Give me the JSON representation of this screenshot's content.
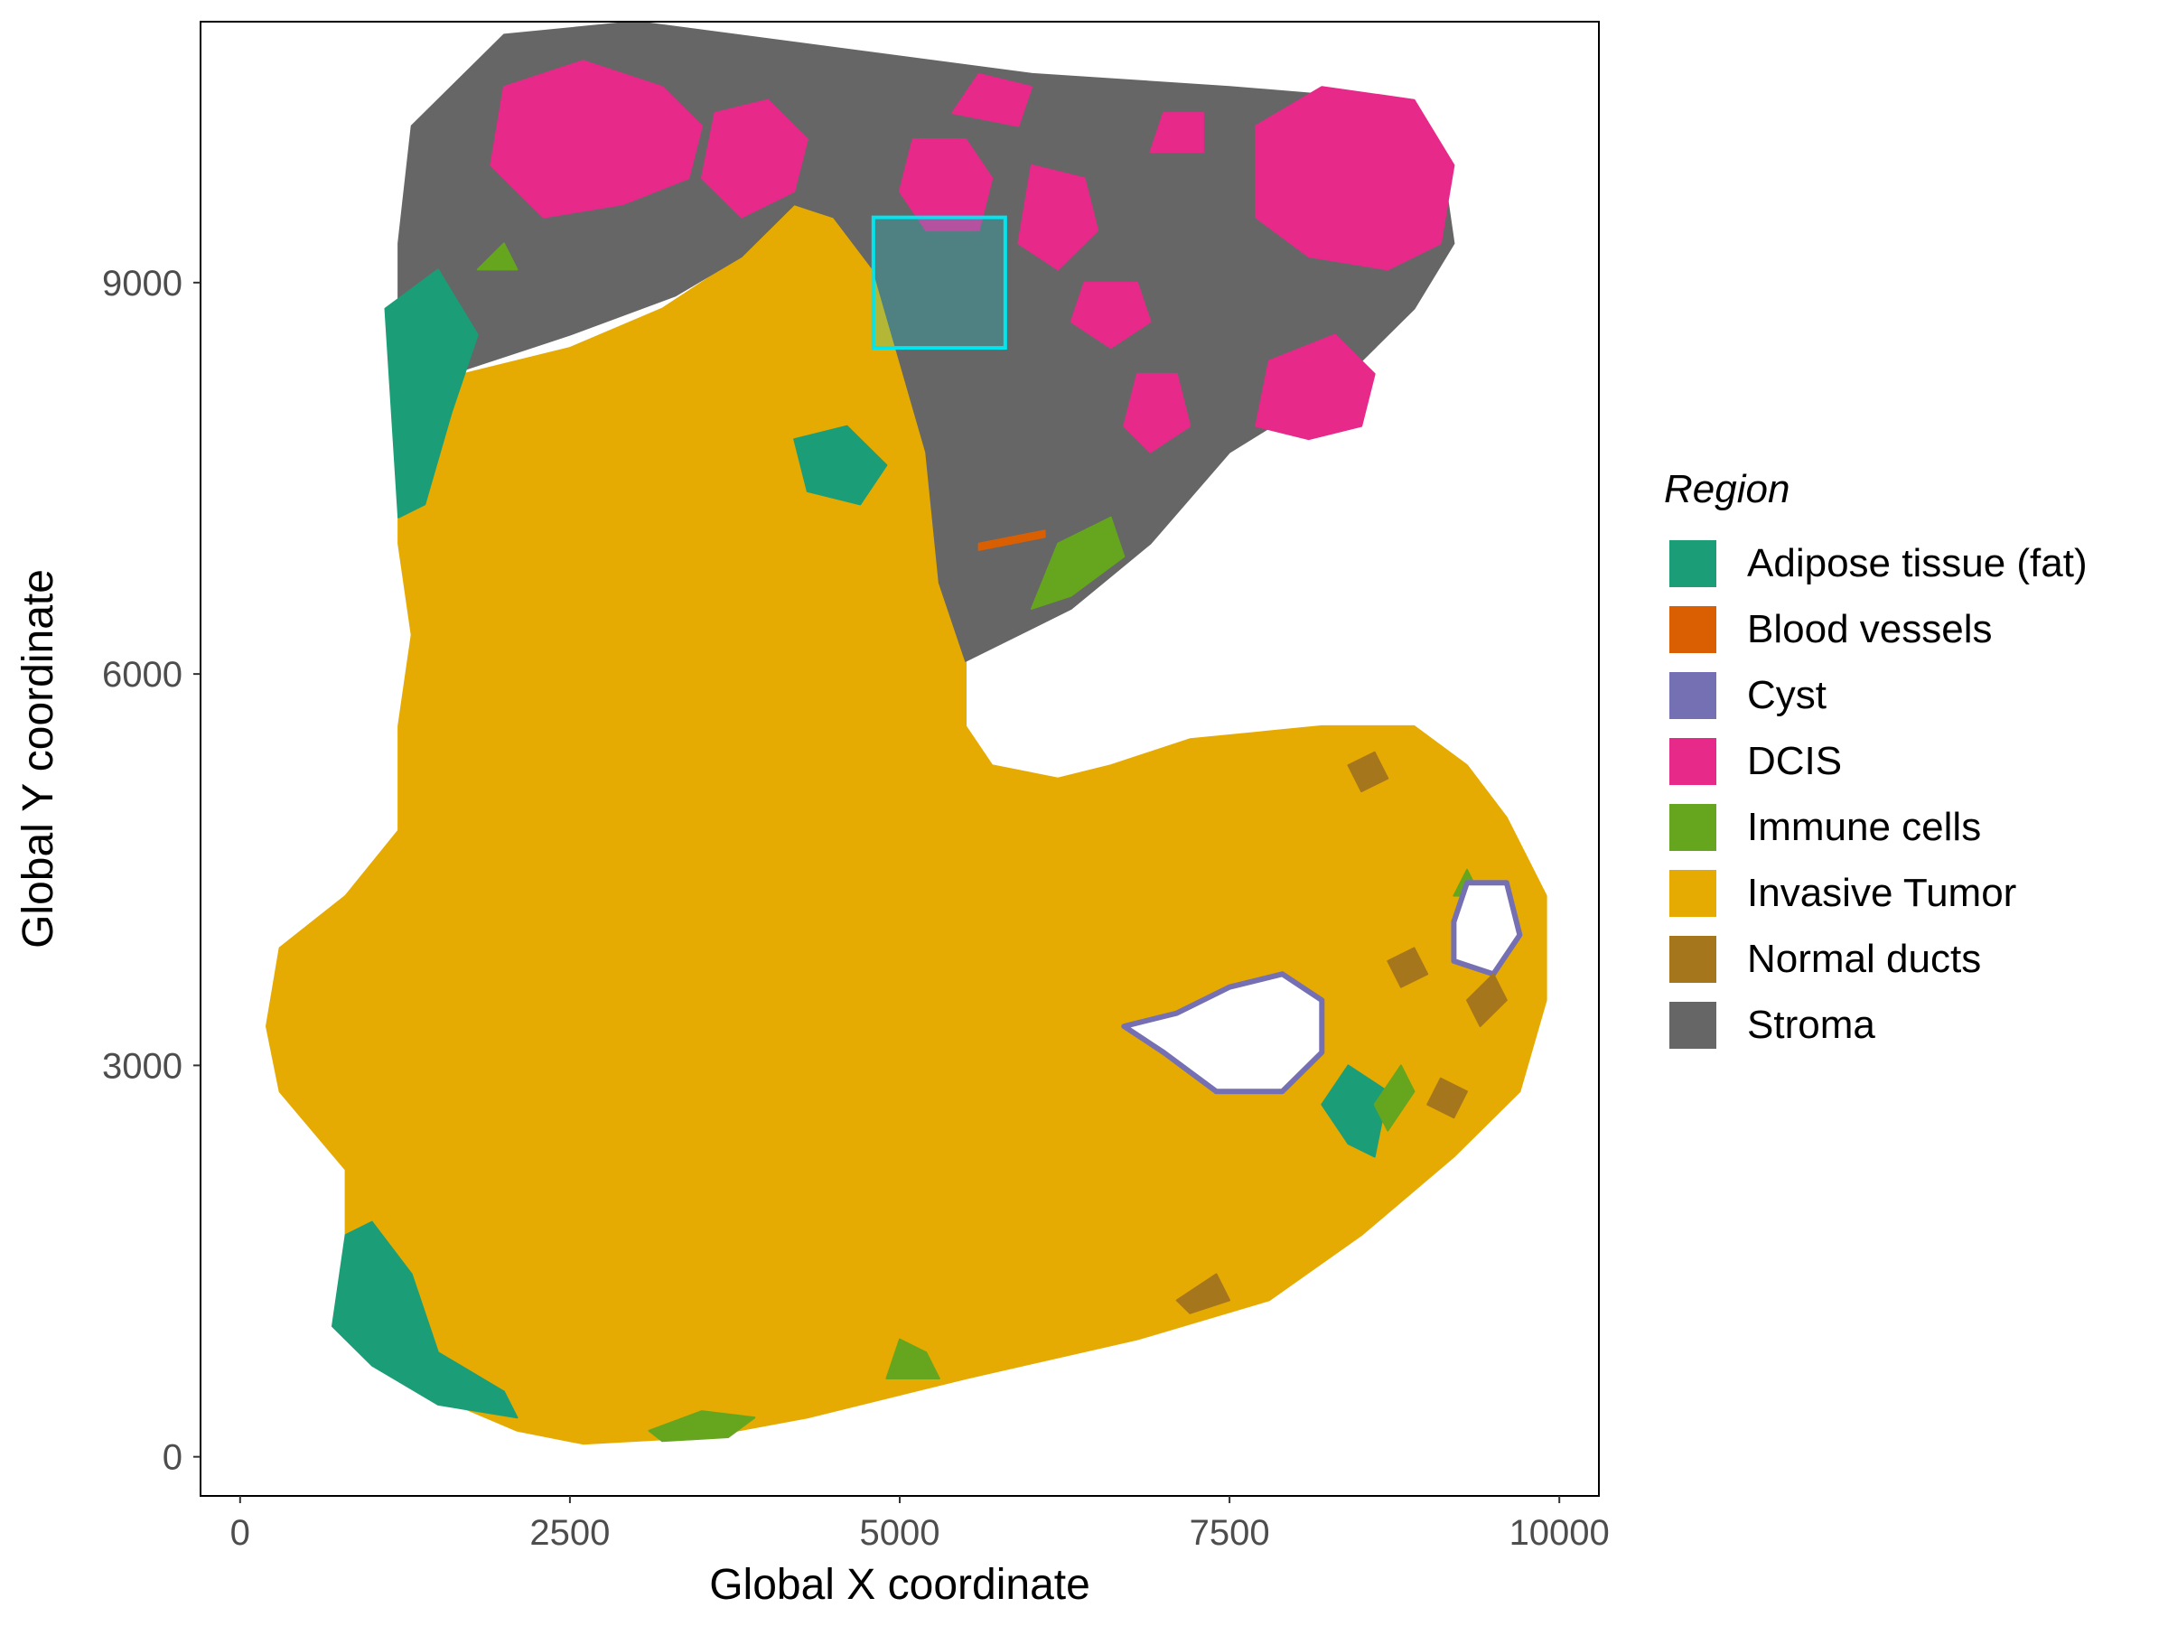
{
  "chart_data": {
    "type": "scatter",
    "title": "",
    "xlabel": "Global X coordinate",
    "ylabel": "Global Y coordinate",
    "xlim": [
      -300,
      10300
    ],
    "ylim": [
      -300,
      11000
    ],
    "x_ticks": [
      0,
      2500,
      5000,
      7500,
      10000
    ],
    "x_tick_labels": [
      "0",
      "2500",
      "5000",
      "7500",
      "10000"
    ],
    "y_ticks": [
      0,
      3000,
      6000,
      9000
    ],
    "y_tick_labels": [
      "0",
      "3000",
      "6000",
      "9000"
    ],
    "grid": false,
    "legend": {
      "title": "Region",
      "placement": "right",
      "entries": [
        {
          "name": "Adipose tissue (fat)",
          "color": "#1B9E77"
        },
        {
          "name": "Blood vessels",
          "color": "#D95F02"
        },
        {
          "name": "Cyst",
          "color": "#7570B3"
        },
        {
          "name": "DCIS",
          "color": "#E7298A"
        },
        {
          "name": "Immune cells",
          "color": "#66A61E"
        },
        {
          "name": "Invasive Tumor",
          "color": "#E6AB02"
        },
        {
          "name": "Normal ducts",
          "color": "#A6761D"
        },
        {
          "name": "Stroma",
          "color": "#666666"
        }
      ]
    },
    "highlight_box": {
      "x": [
        4800,
        5800
      ],
      "y": [
        8500,
        9500
      ],
      "color": "#00E5EE"
    },
    "regions": [
      {
        "name": "Invasive Tumor",
        "color": "#E6AB02",
        "outline": [
          [
            1200,
            8000
          ],
          [
            1700,
            8300
          ],
          [
            2500,
            8500
          ],
          [
            3200,
            8800
          ],
          [
            3800,
            9200
          ],
          [
            4200,
            9600
          ],
          [
            4700,
            9500
          ],
          [
            4900,
            9300
          ],
          [
            4900,
            8800
          ],
          [
            5200,
            8400
          ],
          [
            5300,
            7700
          ],
          [
            5400,
            6800
          ],
          [
            5500,
            6200
          ],
          [
            5500,
            5600
          ],
          [
            5700,
            5300
          ],
          [
            6200,
            5200
          ],
          [
            6600,
            5300
          ],
          [
            7200,
            5500
          ],
          [
            8200,
            5600
          ],
          [
            8900,
            5600
          ],
          [
            9300,
            5300
          ],
          [
            9600,
            4900
          ],
          [
            9900,
            4300
          ],
          [
            9900,
            3500
          ],
          [
            9700,
            2800
          ],
          [
            9200,
            2300
          ],
          [
            8500,
            1700
          ],
          [
            7800,
            1200
          ],
          [
            6800,
            900
          ],
          [
            5500,
            600
          ],
          [
            4300,
            300
          ],
          [
            3500,
            150
          ],
          [
            2600,
            100
          ],
          [
            2100,
            200
          ],
          [
            1400,
            500
          ],
          [
            900,
            900
          ],
          [
            800,
            1500
          ],
          [
            800,
            2200
          ],
          [
            300,
            2800
          ],
          [
            200,
            3300
          ],
          [
            300,
            3900
          ],
          [
            800,
            4300
          ],
          [
            1200,
            4800
          ],
          [
            1200,
            5600
          ],
          [
            1300,
            6300
          ],
          [
            1200,
            7000
          ]
        ]
      },
      {
        "name": "Stroma",
        "color": "#666666",
        "outline": [
          [
            1200,
            9300
          ],
          [
            1300,
            10200
          ],
          [
            2000,
            10900
          ],
          [
            3000,
            11000
          ],
          [
            4500,
            10800
          ],
          [
            6000,
            10600
          ],
          [
            7500,
            10500
          ],
          [
            8700,
            10400
          ],
          [
            9100,
            10000
          ],
          [
            9200,
            9300
          ],
          [
            8900,
            8800
          ],
          [
            8300,
            8200
          ],
          [
            7500,
            7700
          ],
          [
            6900,
            7000
          ],
          [
            6300,
            6500
          ],
          [
            5500,
            6100
          ],
          [
            5300,
            6700
          ],
          [
            5200,
            7700
          ],
          [
            5000,
            8400
          ],
          [
            4800,
            9100
          ],
          [
            4500,
            9500
          ],
          [
            4200,
            9600
          ],
          [
            3800,
            9200
          ],
          [
            3300,
            8900
          ],
          [
            2500,
            8600
          ],
          [
            1600,
            8300
          ],
          [
            1200,
            8500
          ]
        ]
      },
      {
        "name": "DCIS",
        "color": "#E7298A",
        "outline": [
          [
            1900,
            9900
          ],
          [
            2000,
            10500
          ],
          [
            2600,
            10700
          ],
          [
            3200,
            10500
          ],
          [
            3500,
            10200
          ],
          [
            3400,
            9800
          ],
          [
            2900,
            9600
          ],
          [
            2300,
            9500
          ]
        ]
      },
      {
        "name": "DCIS",
        "color": "#E7298A",
        "outline": [
          [
            3500,
            9800
          ],
          [
            3600,
            10300
          ],
          [
            4000,
            10400
          ],
          [
            4300,
            10100
          ],
          [
            4200,
            9700
          ],
          [
            3800,
            9500
          ]
        ]
      },
      {
        "name": "DCIS",
        "color": "#E7298A",
        "outline": [
          [
            7700,
            9500
          ],
          [
            7700,
            10200
          ],
          [
            8200,
            10500
          ],
          [
            8900,
            10400
          ],
          [
            9200,
            9900
          ],
          [
            9100,
            9300
          ],
          [
            8700,
            9100
          ],
          [
            8100,
            9200
          ]
        ]
      },
      {
        "name": "DCIS",
        "color": "#E7298A",
        "outline": [
          [
            5000,
            9700
          ],
          [
            5100,
            10100
          ],
          [
            5500,
            10100
          ],
          [
            5700,
            9800
          ],
          [
            5600,
            9400
          ],
          [
            5200,
            9400
          ]
        ]
      },
      {
        "name": "DCIS",
        "color": "#E7298A",
        "outline": [
          [
            5900,
            9300
          ],
          [
            6000,
            9900
          ],
          [
            6400,
            9800
          ],
          [
            6500,
            9400
          ],
          [
            6200,
            9100
          ]
        ]
      },
      {
        "name": "DCIS",
        "color": "#E7298A",
        "outline": [
          [
            7700,
            7900
          ],
          [
            7800,
            8400
          ],
          [
            8300,
            8600
          ],
          [
            8600,
            8300
          ],
          [
            8500,
            7900
          ],
          [
            8100,
            7800
          ]
        ]
      },
      {
        "name": "DCIS",
        "color": "#E7298A",
        "outline": [
          [
            6700,
            7900
          ],
          [
            6800,
            8300
          ],
          [
            7100,
            8300
          ],
          [
            7200,
            7900
          ],
          [
            6900,
            7700
          ]
        ]
      },
      {
        "name": "DCIS",
        "color": "#E7298A",
        "outline": [
          [
            6300,
            8700
          ],
          [
            6400,
            9000
          ],
          [
            6800,
            9000
          ],
          [
            6900,
            8700
          ],
          [
            6600,
            8500
          ]
        ]
      },
      {
        "name": "DCIS",
        "color": "#E7298A",
        "outline": [
          [
            5400,
            10300
          ],
          [
            5600,
            10600
          ],
          [
            6000,
            10500
          ],
          [
            5900,
            10200
          ]
        ]
      },
      {
        "name": "DCIS",
        "color": "#E7298A",
        "outline": [
          [
            6900,
            10000
          ],
          [
            7000,
            10300
          ],
          [
            7300,
            10300
          ],
          [
            7300,
            10000
          ]
        ]
      },
      {
        "name": "Adipose tissue (fat)",
        "color": "#1B9E77",
        "outline": [
          [
            1100,
            8800
          ],
          [
            1200,
            7200
          ],
          [
            1400,
            7300
          ],
          [
            1600,
            8000
          ],
          [
            1800,
            8600
          ],
          [
            1500,
            9100
          ]
        ]
      },
      {
        "name": "Adipose tissue (fat)",
        "color": "#1B9E77",
        "outline": [
          [
            800,
            1700
          ],
          [
            700,
            1000
          ],
          [
            1000,
            700
          ],
          [
            1500,
            400
          ],
          [
            2100,
            300
          ],
          [
            2000,
            500
          ],
          [
            1500,
            800
          ],
          [
            1300,
            1400
          ],
          [
            1000,
            1800
          ]
        ]
      },
      {
        "name": "Adipose tissue (fat)",
        "color": "#1B9E77",
        "outline": [
          [
            4200,
            7800
          ],
          [
            4300,
            7400
          ],
          [
            4700,
            7300
          ],
          [
            4900,
            7600
          ],
          [
            4600,
            7900
          ]
        ]
      },
      {
        "name": "Adipose tissue (fat)",
        "color": "#1B9E77",
        "outline": [
          [
            8200,
            2700
          ],
          [
            8400,
            2400
          ],
          [
            8600,
            2300
          ],
          [
            8700,
            2800
          ],
          [
            8400,
            3000
          ]
        ]
      },
      {
        "name": "Immune cells",
        "color": "#66A61E",
        "outline": [
          [
            6000,
            6500
          ],
          [
            6200,
            7000
          ],
          [
            6600,
            7200
          ],
          [
            6700,
            6900
          ],
          [
            6300,
            6600
          ]
        ]
      },
      {
        "name": "Immune cells",
        "color": "#66A61E",
        "outline": [
          [
            3100,
            200
          ],
          [
            3500,
            350
          ],
          [
            3900,
            300
          ],
          [
            3700,
            150
          ],
          [
            3200,
            120
          ]
        ]
      },
      {
        "name": "Immune cells",
        "color": "#66A61E",
        "outline": [
          [
            4900,
            600
          ],
          [
            5000,
            900
          ],
          [
            5200,
            800
          ],
          [
            5300,
            600
          ]
        ]
      },
      {
        "name": "Immune cells",
        "color": "#66A61E",
        "outline": [
          [
            8600,
            2700
          ],
          [
            8800,
            3000
          ],
          [
            8900,
            2800
          ],
          [
            8700,
            2500
          ]
        ]
      },
      {
        "name": "Immune cells",
        "color": "#66A61E",
        "outline": [
          [
            9200,
            4300
          ],
          [
            9300,
            4500
          ],
          [
            9400,
            4300
          ]
        ]
      },
      {
        "name": "Immune cells",
        "color": "#66A61E",
        "outline": [
          [
            1800,
            9100
          ],
          [
            2000,
            9300
          ],
          [
            2100,
            9100
          ]
        ]
      },
      {
        "name": "Cyst",
        "color": "#7570B3",
        "outline": [
          [
            6700,
            3300
          ],
          [
            7000,
            3100
          ],
          [
            7400,
            2800
          ],
          [
            7900,
            2800
          ],
          [
            8200,
            3100
          ],
          [
            8200,
            3500
          ],
          [
            7900,
            3700
          ],
          [
            7500,
            3600
          ],
          [
            7100,
            3400
          ]
        ]
      },
      {
        "name": "Cyst",
        "color": "#7570B3",
        "outline": [
          [
            9200,
            4100
          ],
          [
            9300,
            4400
          ],
          [
            9600,
            4400
          ],
          [
            9700,
            4000
          ],
          [
            9500,
            3700
          ],
          [
            9200,
            3800
          ]
        ]
      },
      {
        "name": "Normal ducts",
        "color": "#A6761D",
        "outline": [
          [
            8700,
            3800
          ],
          [
            8900,
            3900
          ],
          [
            9000,
            3700
          ],
          [
            8800,
            3600
          ]
        ]
      },
      {
        "name": "Normal ducts",
        "color": "#A6761D",
        "outline": [
          [
            9300,
            3500
          ],
          [
            9500,
            3700
          ],
          [
            9600,
            3500
          ],
          [
            9400,
            3300
          ]
        ]
      },
      {
        "name": "Normal ducts",
        "color": "#A6761D",
        "outline": [
          [
            9000,
            2700
          ],
          [
            9100,
            2900
          ],
          [
            9300,
            2800
          ],
          [
            9200,
            2600
          ]
        ]
      },
      {
        "name": "Normal ducts",
        "color": "#A6761D",
        "outline": [
          [
            8400,
            5300
          ],
          [
            8600,
            5400
          ],
          [
            8700,
            5200
          ],
          [
            8500,
            5100
          ]
        ]
      },
      {
        "name": "Normal ducts",
        "color": "#A6761D",
        "outline": [
          [
            7100,
            1200
          ],
          [
            7400,
            1400
          ],
          [
            7500,
            1200
          ],
          [
            7200,
            1100
          ]
        ]
      },
      {
        "name": "Blood vessels",
        "color": "#D95F02",
        "outline": [
          [
            5600,
            7000
          ],
          [
            6100,
            7100
          ],
          [
            6100,
            7050
          ],
          [
            5600,
            6950
          ]
        ]
      }
    ]
  }
}
